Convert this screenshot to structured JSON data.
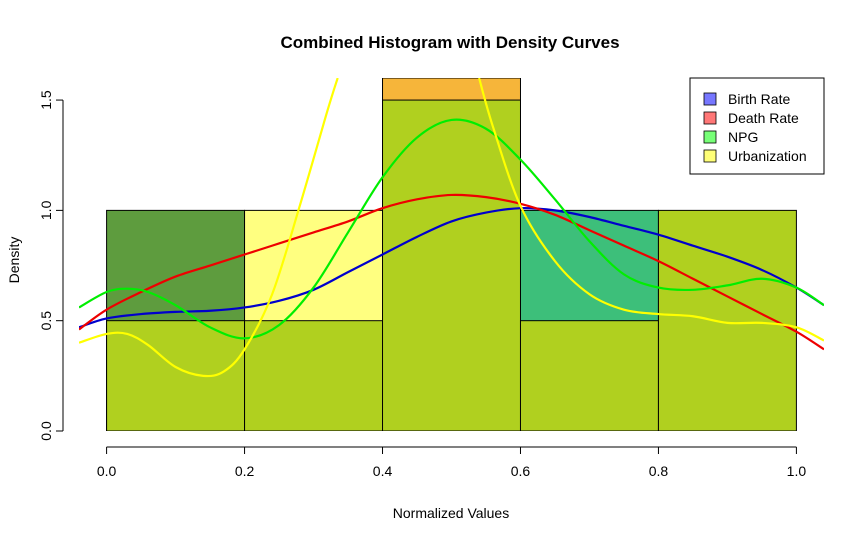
{
  "chart_data": {
    "type": "histogram",
    "title": "Combined Histogram with Density Curves",
    "xlabel": "Normalized Values",
    "ylabel": "Density",
    "xlim": [
      -0.04,
      1.04
    ],
    "ylim": [
      0,
      1.6
    ],
    "x_ticks": [
      0.0,
      0.2,
      0.4,
      0.6,
      0.8,
      1.0
    ],
    "x_tick_labels": [
      "0.0",
      "0.2",
      "0.4",
      "0.6",
      "0.8",
      "1.0"
    ],
    "y_ticks": [
      0.0,
      0.5,
      1.0,
      1.5
    ],
    "y_tick_labels": [
      "0.0",
      "0.5",
      "1.0",
      "1.5"
    ],
    "bin_edges": [
      0.0,
      0.2,
      0.4,
      0.6,
      0.8,
      1.0
    ],
    "histogram_layers": [
      {
        "color": "#5e9c3e",
        "counts": [
          1.0,
          0.0,
          0.0,
          0.0,
          0.0
        ]
      },
      {
        "color": "#ffff80",
        "counts": [
          0.0,
          1.0,
          0.0,
          0.0,
          0.0
        ]
      },
      {
        "color": "#f6b53a",
        "counts": [
          0.0,
          0.0,
          1.6,
          0.0,
          0.0
        ]
      },
      {
        "color": "#3dbf7a",
        "counts": [
          0.0,
          0.0,
          0.0,
          1.0,
          0.0
        ]
      },
      {
        "color": "#b0d01f",
        "counts": [
          0.5,
          0.5,
          1.5,
          0.5,
          1.0
        ]
      }
    ],
    "legend": {
      "position": "top-right",
      "entries": [
        {
          "label": "Birth Rate",
          "color": "#7777ff"
        },
        {
          "label": "Death Rate",
          "color": "#ff7777"
        },
        {
          "label": "NPG",
          "color": "#77ff77"
        },
        {
          "label": "Urbanization",
          "color": "#ffff77"
        }
      ]
    },
    "density_curves": [
      {
        "color": "#0000cc",
        "points": [
          [
            -0.04,
            0.47
          ],
          [
            0.0,
            0.51
          ],
          [
            0.05,
            0.53
          ],
          [
            0.1,
            0.54
          ],
          [
            0.15,
            0.545
          ],
          [
            0.2,
            0.56
          ],
          [
            0.25,
            0.59
          ],
          [
            0.3,
            0.64
          ],
          [
            0.35,
            0.72
          ],
          [
            0.4,
            0.8
          ],
          [
            0.45,
            0.88
          ],
          [
            0.5,
            0.95
          ],
          [
            0.55,
            0.99
          ],
          [
            0.6,
            1.01
          ],
          [
            0.65,
            1.0
          ],
          [
            0.7,
            0.97
          ],
          [
            0.75,
            0.93
          ],
          [
            0.8,
            0.89
          ],
          [
            0.85,
            0.84
          ],
          [
            0.9,
            0.79
          ],
          [
            0.95,
            0.73
          ],
          [
            1.0,
            0.65
          ],
          [
            1.04,
            0.57
          ]
        ]
      },
      {
        "color": "#ee0000",
        "points": [
          [
            -0.04,
            0.46
          ],
          [
            0.0,
            0.55
          ],
          [
            0.05,
            0.63
          ],
          [
            0.1,
            0.7
          ],
          [
            0.15,
            0.75
          ],
          [
            0.2,
            0.8
          ],
          [
            0.25,
            0.85
          ],
          [
            0.3,
            0.9
          ],
          [
            0.35,
            0.95
          ],
          [
            0.4,
            1.01
          ],
          [
            0.45,
            1.05
          ],
          [
            0.5,
            1.07
          ],
          [
            0.55,
            1.06
          ],
          [
            0.6,
            1.03
          ],
          [
            0.65,
            0.98
          ],
          [
            0.7,
            0.91
          ],
          [
            0.75,
            0.84
          ],
          [
            0.8,
            0.77
          ],
          [
            0.85,
            0.69
          ],
          [
            0.9,
            0.61
          ],
          [
            0.95,
            0.53
          ],
          [
            1.0,
            0.45
          ],
          [
            1.04,
            0.37
          ]
        ]
      },
      {
        "color": "#00ee00",
        "points": [
          [
            -0.04,
            0.56
          ],
          [
            0.0,
            0.63
          ],
          [
            0.03,
            0.645
          ],
          [
            0.06,
            0.63
          ],
          [
            0.1,
            0.57
          ],
          [
            0.15,
            0.47
          ],
          [
            0.2,
            0.42
          ],
          [
            0.25,
            0.48
          ],
          [
            0.3,
            0.65
          ],
          [
            0.35,
            0.9
          ],
          [
            0.4,
            1.15
          ],
          [
            0.45,
            1.33
          ],
          [
            0.5,
            1.41
          ],
          [
            0.55,
            1.37
          ],
          [
            0.6,
            1.23
          ],
          [
            0.65,
            1.05
          ],
          [
            0.7,
            0.86
          ],
          [
            0.75,
            0.71
          ],
          [
            0.8,
            0.65
          ],
          [
            0.85,
            0.64
          ],
          [
            0.9,
            0.66
          ],
          [
            0.95,
            0.69
          ],
          [
            1.0,
            0.65
          ],
          [
            1.04,
            0.57
          ]
        ]
      },
      {
        "color": "#ffff00",
        "points": [
          [
            -0.04,
            0.4
          ],
          [
            0.0,
            0.44
          ],
          [
            0.03,
            0.44
          ],
          [
            0.06,
            0.39
          ],
          [
            0.1,
            0.29
          ],
          [
            0.14,
            0.25
          ],
          [
            0.17,
            0.27
          ],
          [
            0.2,
            0.37
          ],
          [
            0.24,
            0.62
          ],
          [
            0.28,
            1.02
          ],
          [
            0.32,
            1.45
          ],
          [
            0.335,
            1.6
          ]
        ]
      },
      {
        "color": "#ffff00",
        "points": [
          [
            0.54,
            1.6
          ],
          [
            0.56,
            1.38
          ],
          [
            0.6,
            1.02
          ],
          [
            0.65,
            0.77
          ],
          [
            0.7,
            0.62
          ],
          [
            0.75,
            0.55
          ],
          [
            0.8,
            0.53
          ],
          [
            0.85,
            0.52
          ],
          [
            0.9,
            0.49
          ],
          [
            0.95,
            0.49
          ],
          [
            1.0,
            0.47
          ],
          [
            1.04,
            0.41
          ]
        ]
      }
    ]
  }
}
